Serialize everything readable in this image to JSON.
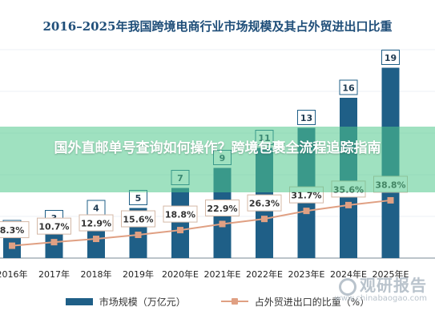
{
  "title": "2016–2025年我国跨境电商行业市场规模及其占外贸进出口比重",
  "overlay_text": "国外直邮单号查询如何操作？跨境包裹全流程追踪指南",
  "watermark": {
    "main": "观研报告",
    "sub": "www.chinabaogao.com"
  },
  "colors": {
    "bar": "#1f5f87",
    "line": "#e0a083",
    "title": "#1f4e79",
    "overlay": "#50c88c"
  },
  "chart_data": {
    "type": "bar",
    "title": "2016–2025年我国跨境电商行业市场规模及其占外贸进出口比重",
    "categories": [
      "2016年",
      "2017年",
      "2018年",
      "2019年",
      "2020年E",
      "2021年E",
      "2022年E",
      "2023年E",
      "2024年E",
      "2025年E"
    ],
    "series": [
      {
        "name": "市场规模（万亿元）",
        "type": "bar",
        "values": [
          2,
          3,
          4,
          5,
          7,
          9,
          11,
          13,
          16,
          19
        ],
        "labels": [
          "2",
          "3",
          "4",
          "5",
          "7",
          "9",
          "11",
          "13",
          "16",
          "19"
        ]
      },
      {
        "name": "占外贸进出口的比重（%）",
        "type": "line",
        "values": [
          8.3,
          10.7,
          12.9,
          15.6,
          18.8,
          22.9,
          26.3,
          31.7,
          35.6,
          38.8
        ],
        "labels": [
          "8.3%",
          "10.7%",
          "12.9%",
          "15.6%",
          "18.8%",
          "22.9%",
          "26.3%",
          "31.7%",
          "35.6%",
          "38.8%"
        ]
      }
    ],
    "ylim": [
      0,
      20
    ],
    "ylim_secondary": [
      0,
      140
    ],
    "legend": {
      "position": "bottom"
    },
    "grid": true
  }
}
